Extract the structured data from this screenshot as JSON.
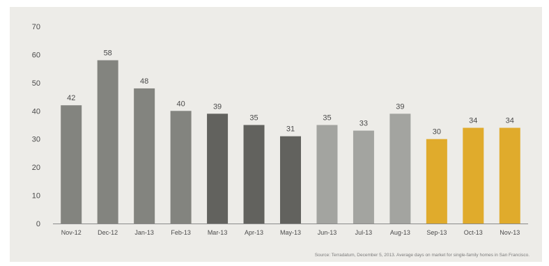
{
  "chart_data": {
    "type": "bar",
    "title": "",
    "xlabel": "",
    "ylabel": "",
    "ylim": [
      0,
      70
    ],
    "yticks": [
      0,
      10,
      20,
      30,
      40,
      50,
      60,
      70
    ],
    "grid": false,
    "categories": [
      "Nov-12",
      "Dec-12",
      "Jan-13",
      "Feb-13",
      "Mar-13",
      "Apr-13",
      "May-13",
      "Jun-13",
      "Jul-13",
      "Aug-13",
      "Sep-13",
      "Oct-13",
      "Nov-13"
    ],
    "values": [
      42,
      58,
      48,
      40,
      39,
      35,
      31,
      35,
      33,
      39,
      30,
      34,
      34
    ],
    "bar_colors": [
      "#83847f",
      "#83847f",
      "#83847f",
      "#83847f",
      "#62625e",
      "#62625e",
      "#62625e",
      "#a3a4a0",
      "#a3a4a0",
      "#a3a4a0",
      "#e0ab2c",
      "#e0ab2c",
      "#e0ab2c"
    ]
  },
  "source": "Source: Terradatum,  December 5, 2013. Average days on market for single-family homes in San Francisco."
}
